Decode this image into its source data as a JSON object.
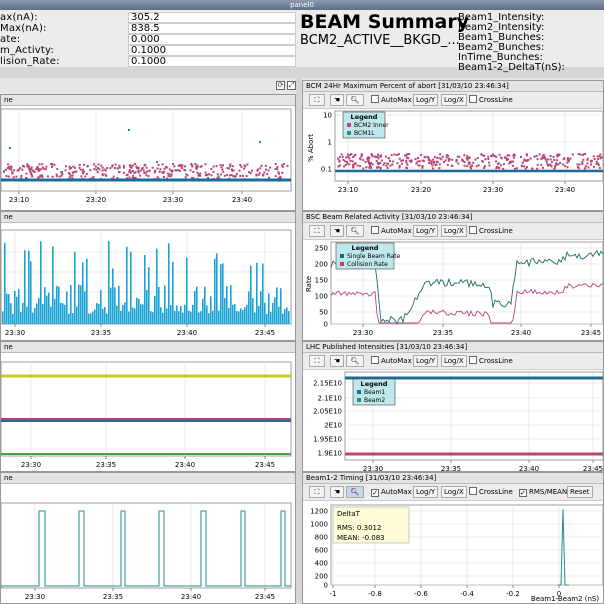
{
  "window": {
    "title": "panel0"
  },
  "info": {
    "rows": [
      {
        "label": "ax(nA):",
        "value": "305.2"
      },
      {
        "label": "Max(nA):",
        "value": "838.5"
      },
      {
        "label": "ate:",
        "value": "0.000"
      },
      {
        "label": "m_Activty:",
        "value": "0.1000"
      },
      {
        "label": "lision_Rate:",
        "value": "0.1000"
      }
    ],
    "beam_title": "BEAM Summary",
    "bkgd_label": "BCM2_ACTIVE__BKGD_...",
    "right_labels": [
      "Beam1_Intensity:",
      "Beam2_Intensity:",
      "Beam1_Bunches:",
      "Beam2_Bunches:",
      "InTime_Bunches:",
      "Beam1-2_DeltaT(nS):"
    ]
  },
  "toolbar": {
    "automax": "AutoMax",
    "logy": "Log/Y",
    "logx": "Log/X",
    "crossline": "CrossLine",
    "rms": "RMS/MEAN",
    "reset": "Reset",
    "zoom_icon": "magnifier-icon",
    "hand_icon": "hand-icon",
    "fit_icon": "fit-icon"
  },
  "panels": {
    "left": [
      {
        "title": "ne",
        "xticks": [
          "23:10",
          "23:20",
          "23:30",
          "23:40"
        ]
      },
      {
        "title": "ne",
        "xticks": [
          "23:30",
          "23:35",
          "23:40",
          "23:45"
        ]
      },
      {
        "title": "ne",
        "xticks": [
          "23:30",
          "23:35",
          "23:40",
          "23:45"
        ]
      },
      {
        "title": "ne",
        "xticks": [
          "23:30",
          "23:35",
          "23:40",
          "23:45"
        ]
      }
    ],
    "right": [
      {
        "title": "BCM 24Hr Maximum Percent of abort [31/03/10 23:46:34]",
        "ylabel": "% Abort",
        "yticks": [
          "10",
          "1",
          "0.1"
        ],
        "xticks": [
          "23:10",
          "23:20",
          "23:30",
          "23:40"
        ],
        "legend_title": "Legend",
        "legend": [
          "BCM2 Inner",
          "BCM1L"
        ]
      },
      {
        "title": "BSC Beam Related Activity [31/03/10 23:46:34]",
        "ylabel": "Rate",
        "yticks": [
          "250",
          "200",
          "150",
          "100",
          "50",
          "0"
        ],
        "xticks": [
          "23:30",
          "23:35",
          "23:40",
          "23:45"
        ],
        "legend_title": "Legend",
        "legend": [
          "Single Beam Rate",
          "Collision Rate"
        ]
      },
      {
        "title": "LHC Published Intensities [31/03/10 23:46:34]",
        "yticks": [
          "2.15E10",
          "2.1E10",
          "2.05E10",
          "2E10",
          "1.95E10",
          "1.9E10"
        ],
        "xticks": [
          "23:30",
          "23:35",
          "23:40",
          "23:45"
        ],
        "legend_title": "Legend",
        "legend": [
          "Beam1",
          "Beam2"
        ]
      },
      {
        "title": "Beam1-2 Timing [31/03/10 23:46:34]",
        "yticks": [
          "1200",
          "1000",
          "800",
          "600",
          "400",
          "200",
          "0"
        ],
        "xticks": [
          "-1",
          "-0.8",
          "-0.6",
          "-0.4",
          "-0.2",
          "0"
        ],
        "xlabel": "Beam1-Beam2 (nS)",
        "stats_title": "DeltaT",
        "stats_rms": "RMS: 0.3012",
        "stats_mean": "MEAN: -0.083"
      }
    ]
  },
  "colors": {
    "pink": "#b8437a",
    "blue": "#1f6b9a",
    "cyan": "#19a3d4",
    "teal": "#2b8a8a",
    "yellow": "#c8c81e",
    "green": "#4aa14a"
  }
}
